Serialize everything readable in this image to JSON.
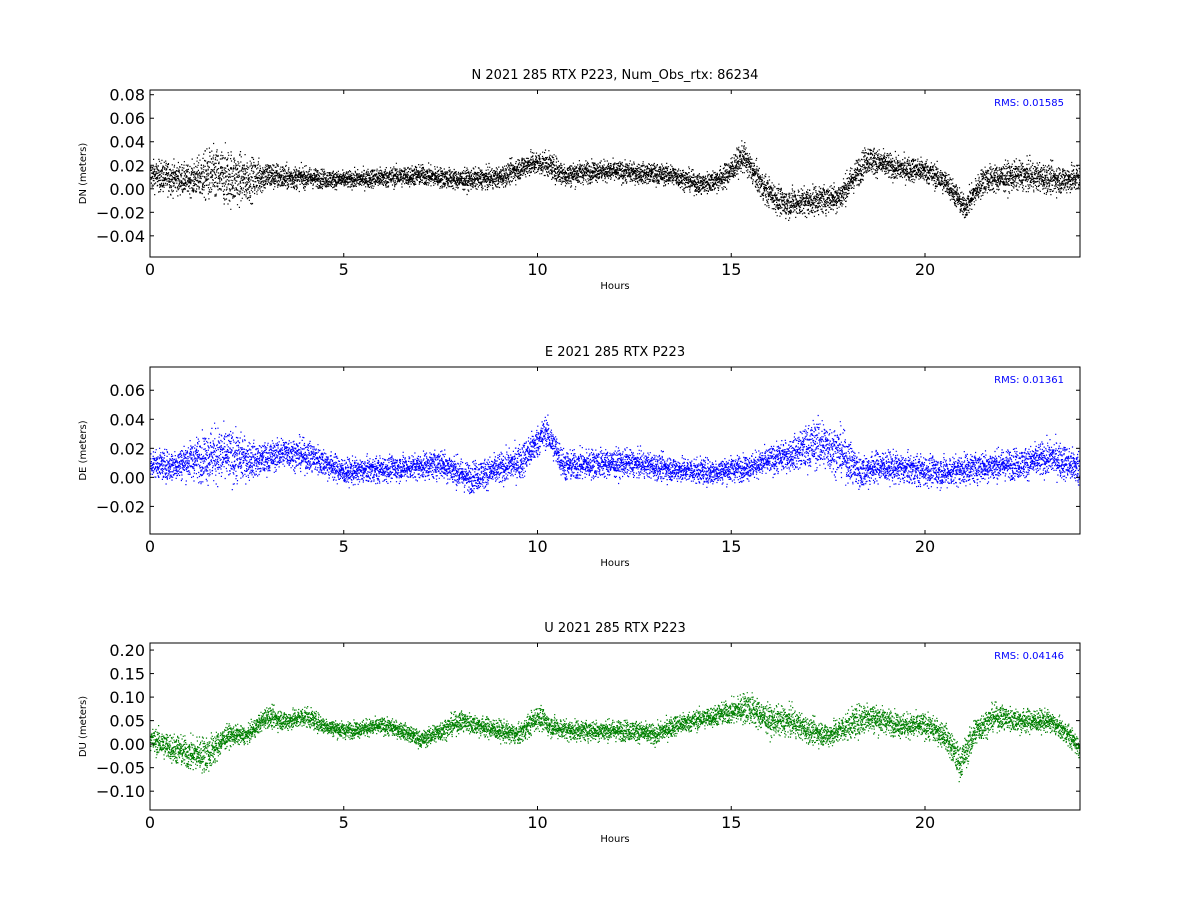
{
  "chart_data": [
    {
      "type": "scatter",
      "title": "N 2021 285 RTX  P223, Num_Obs_rtx: 86234",
      "xlabel": "Hours",
      "ylabel": "DN (meters)",
      "xlim": [
        0,
        24
      ],
      "ylim": [
        -0.058,
        0.084
      ],
      "xticks": [
        0,
        5,
        10,
        15,
        20
      ],
      "xtick_labels": [
        "0",
        "5",
        "10",
        "15",
        "20"
      ],
      "yticks": [
        -0.04,
        -0.02,
        0.0,
        0.02,
        0.04,
        0.06,
        0.08
      ],
      "ytick_labels": [
        "−0.04",
        "−0.02",
        "0.00",
        "0.02",
        "0.04",
        "0.06",
        "0.08"
      ],
      "annotation": "RMS:  0.01585",
      "annotation_color": "#0000ff",
      "grid": false,
      "series": [
        {
          "color": "#000000",
          "points": [
            [
              0.0,
              0.012,
              0.014
            ],
            [
              0.5,
              0.01,
              0.016
            ],
            [
              1.0,
              0.008,
              0.014
            ],
            [
              1.5,
              0.012,
              0.026
            ],
            [
              2.0,
              0.01,
              0.028
            ],
            [
              2.5,
              0.008,
              0.022
            ],
            [
              3.0,
              0.012,
              0.014
            ],
            [
              3.5,
              0.01,
              0.012
            ],
            [
              4.0,
              0.01,
              0.01
            ],
            [
              5.0,
              0.008,
              0.008
            ],
            [
              6.0,
              0.01,
              0.01
            ],
            [
              7.0,
              0.012,
              0.01
            ],
            [
              8.0,
              0.008,
              0.01
            ],
            [
              9.0,
              0.01,
              0.01
            ],
            [
              9.8,
              0.022,
              0.012
            ],
            [
              10.2,
              0.022,
              0.012
            ],
            [
              10.7,
              0.012,
              0.012
            ],
            [
              11.5,
              0.016,
              0.01
            ],
            [
              12.5,
              0.014,
              0.01
            ],
            [
              13.5,
              0.012,
              0.01
            ],
            [
              14.2,
              0.004,
              0.01
            ],
            [
              14.8,
              0.01,
              0.012
            ],
            [
              15.3,
              0.028,
              0.014
            ],
            [
              15.8,
              0.002,
              0.014
            ],
            [
              16.3,
              -0.012,
              0.014
            ],
            [
              17.0,
              -0.01,
              0.014
            ],
            [
              17.8,
              -0.006,
              0.014
            ],
            [
              18.5,
              0.026,
              0.014
            ],
            [
              19.2,
              0.018,
              0.012
            ],
            [
              20.0,
              0.016,
              0.012
            ],
            [
              20.6,
              0.004,
              0.012
            ],
            [
              21.0,
              -0.016,
              0.012
            ],
            [
              21.5,
              0.008,
              0.014
            ],
            [
              22.5,
              0.012,
              0.014
            ],
            [
              23.5,
              0.008,
              0.014
            ],
            [
              24.0,
              0.01,
              0.014
            ]
          ]
        }
      ]
    },
    {
      "type": "scatter",
      "title": "E 2021 285 RTX  P223",
      "xlabel": "Hours",
      "ylabel": "DE (meters)",
      "xlim": [
        0,
        24
      ],
      "ylim": [
        -0.039,
        0.076
      ],
      "xticks": [
        0,
        5,
        10,
        15,
        20
      ],
      "xtick_labels": [
        "0",
        "5",
        "10",
        "15",
        "20"
      ],
      "yticks": [
        -0.02,
        0.0,
        0.02,
        0.04,
        0.06
      ],
      "ytick_labels": [
        "−0.02",
        "0.00",
        "0.02",
        "0.04",
        "0.06"
      ],
      "annotation": "RMS:  0.01361",
      "annotation_color": "#0000ff",
      "grid": false,
      "series": [
        {
          "color": "#0000ff",
          "points": [
            [
              0.0,
              0.01,
              0.01
            ],
            [
              0.5,
              0.008,
              0.012
            ],
            [
              1.0,
              0.012,
              0.014
            ],
            [
              1.6,
              0.016,
              0.022
            ],
            [
              2.2,
              0.014,
              0.02
            ],
            [
              2.8,
              0.012,
              0.012
            ],
            [
              3.5,
              0.018,
              0.012
            ],
            [
              4.2,
              0.014,
              0.012
            ],
            [
              5.0,
              0.004,
              0.01
            ],
            [
              6.0,
              0.006,
              0.01
            ],
            [
              7.0,
              0.008,
              0.01
            ],
            [
              7.5,
              0.01,
              0.012
            ],
            [
              8.2,
              0.0,
              0.012
            ],
            [
              9.0,
              0.006,
              0.012
            ],
            [
              9.6,
              0.012,
              0.014
            ],
            [
              10.2,
              0.032,
              0.012
            ],
            [
              10.7,
              0.008,
              0.012
            ],
            [
              11.5,
              0.01,
              0.012
            ],
            [
              12.5,
              0.01,
              0.01
            ],
            [
              13.5,
              0.006,
              0.01
            ],
            [
              14.5,
              0.004,
              0.01
            ],
            [
              15.5,
              0.008,
              0.01
            ],
            [
              16.5,
              0.016,
              0.012
            ],
            [
              17.2,
              0.024,
              0.02
            ],
            [
              17.8,
              0.018,
              0.018
            ],
            [
              18.3,
              0.004,
              0.014
            ],
            [
              18.8,
              0.008,
              0.012
            ],
            [
              19.5,
              0.006,
              0.012
            ],
            [
              20.5,
              0.004,
              0.012
            ],
            [
              21.5,
              0.008,
              0.012
            ],
            [
              22.5,
              0.01,
              0.012
            ],
            [
              23.3,
              0.014,
              0.014
            ],
            [
              24.0,
              0.006,
              0.014
            ]
          ]
        }
      ]
    },
    {
      "type": "scatter",
      "title": "U 2021 285 RTX  P223",
      "xlabel": "Hours",
      "ylabel": "DU (meters)",
      "xlim": [
        0,
        24
      ],
      "ylim": [
        -0.14,
        0.215
      ],
      "xticks": [
        0,
        5,
        10,
        15,
        20
      ],
      "xtick_labels": [
        "0",
        "5",
        "10",
        "15",
        "20"
      ],
      "yticks": [
        -0.1,
        -0.05,
        0.0,
        0.05,
        0.1,
        0.15,
        0.2
      ],
      "ytick_labels": [
        "−0.10",
        "−0.05",
        "0.00",
        "0.05",
        "0.10",
        "0.15",
        "0.20"
      ],
      "annotation": "RMS:  0.04146",
      "annotation_color": "#0000ff",
      "grid": false,
      "series": [
        {
          "color": "#008000",
          "points": [
            [
              0.0,
              0.01,
              0.03
            ],
            [
              0.5,
              -0.005,
              0.035
            ],
            [
              1.0,
              -0.02,
              0.04
            ],
            [
              1.5,
              -0.02,
              0.045
            ],
            [
              2.0,
              0.02,
              0.025
            ],
            [
              2.5,
              0.02,
              0.02
            ],
            [
              3.0,
              0.06,
              0.025
            ],
            [
              3.5,
              0.05,
              0.025
            ],
            [
              4.0,
              0.06,
              0.025
            ],
            [
              4.5,
              0.04,
              0.02
            ],
            [
              5.0,
              0.03,
              0.02
            ],
            [
              5.5,
              0.035,
              0.02
            ],
            [
              6.0,
              0.04,
              0.02
            ],
            [
              6.5,
              0.03,
              0.02
            ],
            [
              7.0,
              0.01,
              0.02
            ],
            [
              7.5,
              0.03,
              0.025
            ],
            [
              8.0,
              0.05,
              0.025
            ],
            [
              8.5,
              0.04,
              0.025
            ],
            [
              9.0,
              0.03,
              0.025
            ],
            [
              9.5,
              0.02,
              0.025
            ],
            [
              10.0,
              0.06,
              0.03
            ],
            [
              10.3,
              0.04,
              0.025
            ],
            [
              10.8,
              0.03,
              0.025
            ],
            [
              11.5,
              0.03,
              0.025
            ],
            [
              12.5,
              0.03,
              0.025
            ],
            [
              13.0,
              0.02,
              0.025
            ],
            [
              13.5,
              0.04,
              0.025
            ],
            [
              14.0,
              0.05,
              0.025
            ],
            [
              14.5,
              0.06,
              0.025
            ],
            [
              15.0,
              0.07,
              0.03
            ],
            [
              15.4,
              0.08,
              0.04
            ],
            [
              16.0,
              0.05,
              0.035
            ],
            [
              16.5,
              0.05,
              0.035
            ],
            [
              17.0,
              0.03,
              0.03
            ],
            [
              17.5,
              0.02,
              0.03
            ],
            [
              18.0,
              0.04,
              0.035
            ],
            [
              18.5,
              0.06,
              0.04
            ],
            [
              19.0,
              0.05,
              0.03
            ],
            [
              19.5,
              0.04,
              0.03
            ],
            [
              20.0,
              0.04,
              0.03
            ],
            [
              20.5,
              0.02,
              0.03
            ],
            [
              20.9,
              -0.04,
              0.04
            ],
            [
              21.3,
              0.03,
              0.035
            ],
            [
              21.8,
              0.06,
              0.03
            ],
            [
              22.5,
              0.05,
              0.03
            ],
            [
              23.2,
              0.05,
              0.025
            ],
            [
              23.7,
              0.02,
              0.025
            ],
            [
              24.0,
              -0.01,
              0.025
            ]
          ]
        }
      ]
    }
  ]
}
